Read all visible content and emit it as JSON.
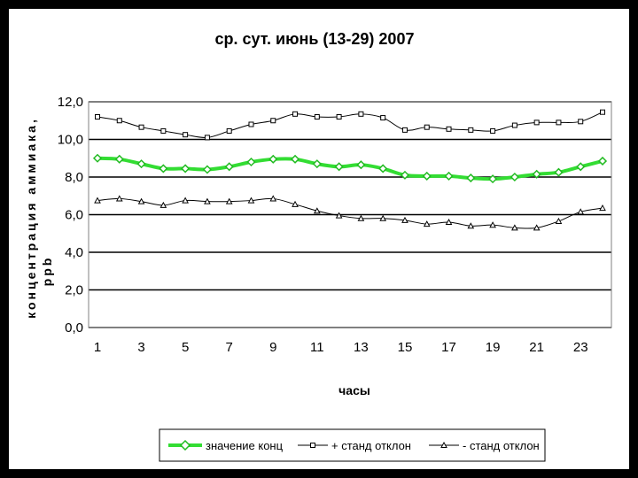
{
  "chart_data": {
    "type": "line",
    "title": "ср. сут. июнь (13-29) 2007",
    "xlabel": "часы",
    "ylabel": "концентрация аммиака, ppb",
    "ylim": [
      0,
      12
    ],
    "yticks": [
      "0,0",
      "2,0",
      "4,0",
      "6,0",
      "8,0",
      "10,0",
      "12,0"
    ],
    "x": [
      1,
      2,
      3,
      4,
      5,
      6,
      7,
      8,
      9,
      10,
      11,
      12,
      13,
      14,
      15,
      16,
      17,
      18,
      19,
      20,
      21,
      22,
      23,
      24
    ],
    "xticks": [
      "1",
      "3",
      "5",
      "7",
      "9",
      "11",
      "13",
      "15",
      "17",
      "19",
      "21",
      "23"
    ],
    "grid": true,
    "legend_position": "bottom",
    "series": [
      {
        "name": "значение конц",
        "color": "#33dd33",
        "marker": "diamond",
        "values": [
          9.0,
          8.95,
          8.7,
          8.45,
          8.45,
          8.4,
          8.55,
          8.8,
          8.95,
          8.95,
          8.7,
          8.55,
          8.65,
          8.45,
          8.1,
          8.05,
          8.05,
          7.95,
          7.9,
          8.0,
          8.15,
          8.25,
          8.55,
          8.85
        ]
      },
      {
        "name": "+ станд отклон",
        "color": "#000000",
        "marker": "square",
        "values": [
          11.2,
          11.0,
          10.65,
          10.45,
          10.25,
          10.1,
          10.45,
          10.8,
          11.0,
          11.35,
          11.2,
          11.2,
          11.35,
          11.15,
          10.5,
          10.65,
          10.55,
          10.5,
          10.45,
          10.75,
          10.9,
          10.9,
          10.95,
          11.45
        ]
      },
      {
        "name": "- станд отклон",
        "color": "#000000",
        "marker": "triangle",
        "values": [
          6.75,
          6.85,
          6.7,
          6.5,
          6.75,
          6.7,
          6.7,
          6.75,
          6.85,
          6.55,
          6.2,
          5.95,
          5.8,
          5.8,
          5.7,
          5.5,
          5.6,
          5.4,
          5.45,
          5.3,
          5.3,
          5.65,
          6.15,
          6.35
        ]
      }
    ]
  }
}
